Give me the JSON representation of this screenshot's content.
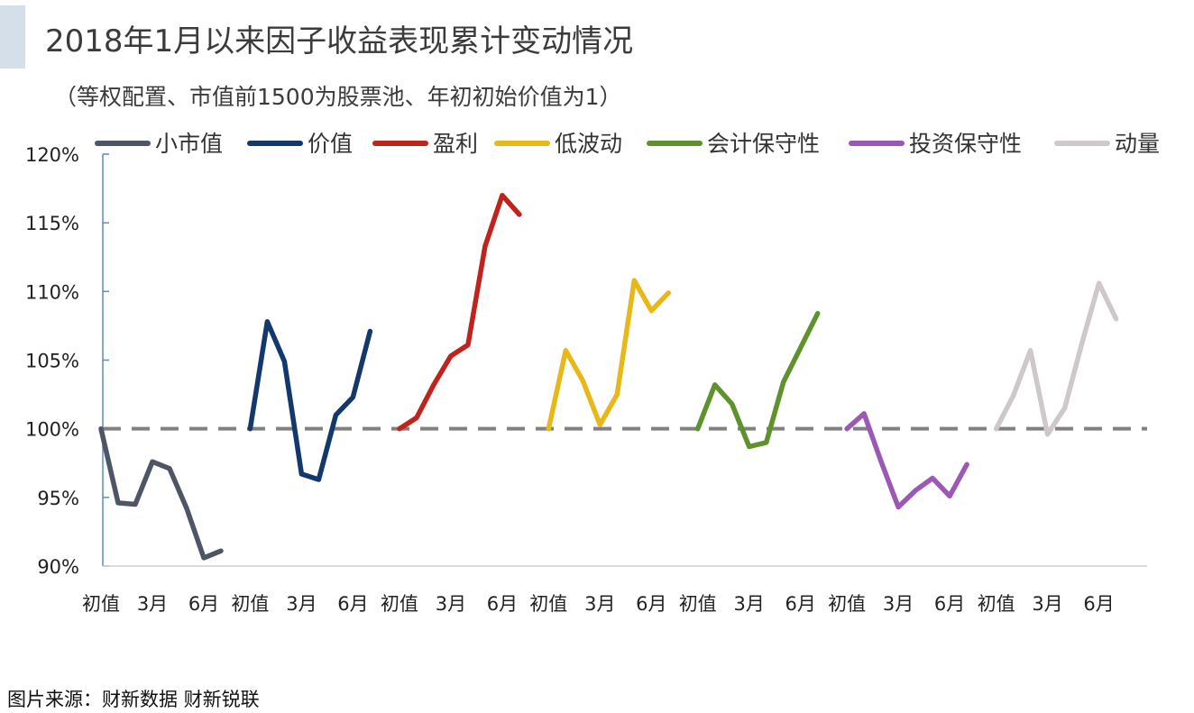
{
  "title": "2018年1月以来因子收益表现累计变动情况",
  "subtitle": "（等权配置、市值前1500为股票池、年初初始价值为1）",
  "source": "图片来源：财新数据 财新锐联",
  "chart_data": {
    "type": "line",
    "ylim": [
      90,
      120
    ],
    "yticks": [
      90,
      95,
      100,
      105,
      110,
      115,
      120
    ],
    "ytick_labels": [
      "90%",
      "95%",
      "100%",
      "105%",
      "110%",
      "115%",
      "120%"
    ],
    "reference_line": 100,
    "grid": false,
    "legend_position": "top",
    "panel_tick_labels": [
      "初值",
      "3月",
      "6月"
    ],
    "series": [
      {
        "name": "小市值",
        "color": "#4d5566",
        "values": [
          100.0,
          94.6,
          94.5,
          97.6,
          97.1,
          94.2,
          90.6,
          91.1
        ]
      },
      {
        "name": "价值",
        "color": "#13386b",
        "values": [
          100.0,
          107.8,
          104.9,
          96.7,
          96.3,
          101.0,
          102.3,
          107.1
        ]
      },
      {
        "name": "盈利",
        "color": "#c0231b",
        "values": [
          100.0,
          100.8,
          103.2,
          105.3,
          106.1,
          113.3,
          117.0,
          115.6
        ]
      },
      {
        "name": "低波动",
        "color": "#e8b81a",
        "values": [
          100.0,
          105.7,
          103.5,
          100.3,
          102.5,
          110.8,
          108.6,
          109.9
        ]
      },
      {
        "name": "会计保守性",
        "color": "#5e922d",
        "values": [
          100.0,
          103.2,
          101.8,
          98.7,
          99.0,
          103.4,
          105.9,
          108.4
        ]
      },
      {
        "name": "投资保守性",
        "color": "#9b58b5",
        "values": [
          100.0,
          101.1,
          97.6,
          94.3,
          95.5,
          96.4,
          95.1,
          97.4
        ]
      },
      {
        "name": "动量",
        "color": "#cfc8cb",
        "values": [
          100.0,
          102.4,
          105.7,
          99.6,
          101.5,
          106.2,
          110.6,
          108.0
        ]
      }
    ]
  }
}
